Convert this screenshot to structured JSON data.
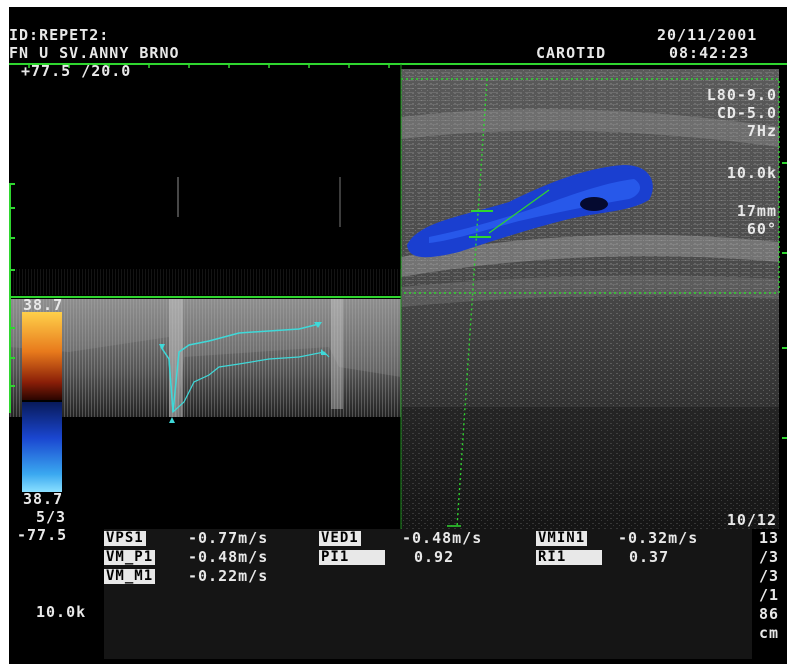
{
  "header": {
    "patient_id": "ID:REPET2:",
    "institution": "FN U SV.ANNY BRNO",
    "exam": "CAROTID",
    "date": "20/11/2001",
    "time": "08:42:23"
  },
  "doppler": {
    "scale": "+77.5 /20.0",
    "color_max": "38.7",
    "color_min": "38.7",
    "ratio": "5/3",
    "baseline": "-77.5",
    "prf": "10.0k"
  },
  "image_params": {
    "probe": "L80-9.0",
    "cd": "CD-5.0",
    "frame_rate": "7Hz",
    "prf": "10.0k",
    "depth": "17mm",
    "angle": "60°",
    "frame": "10/12"
  },
  "measurements": {
    "rows": [
      [
        {
          "label": "VPS1",
          "value": "-0.77m/s"
        },
        {
          "label": "VED1",
          "value": "-0.48m/s"
        },
        {
          "label": "VMIN1",
          "value": "-0.32m/s"
        }
      ],
      [
        {
          "label": "VM_P1",
          "value": "-0.48m/s"
        },
        {
          "label": "PI1",
          "value": "0.92"
        },
        {
          "label": "RI1",
          "value": "0.37"
        }
      ],
      [
        {
          "label": "VM_M1",
          "value": "-0.22m/s"
        }
      ]
    ]
  },
  "right_column": [
    "13",
    "/3",
    "/3",
    "/1",
    "86",
    "cm"
  ],
  "colors": {
    "overlay_green": "#2fd62f",
    "trace_cyan": "#3fd9d9",
    "flow_blue": "#1a3fd0",
    "text": "#e8e8e8"
  }
}
